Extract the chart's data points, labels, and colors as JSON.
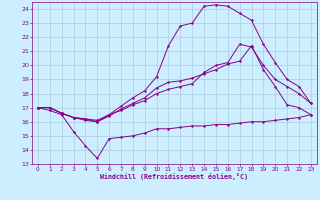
{
  "background_color": "#cceeff",
  "grid_color": "#aaccdd",
  "line_color": "#880088",
  "xlabel": "Windchill (Refroidissement éolien,°C)",
  "xlim": [
    -0.5,
    23.5
  ],
  "ylim": [
    13,
    24.5
  ],
  "yticks": [
    13,
    14,
    15,
    16,
    17,
    18,
    19,
    20,
    21,
    22,
    23,
    24
  ],
  "xticks": [
    0,
    1,
    2,
    3,
    4,
    5,
    6,
    7,
    8,
    9,
    10,
    11,
    12,
    13,
    14,
    15,
    16,
    17,
    18,
    19,
    20,
    21,
    22,
    23
  ],
  "line1_x": [
    0,
    1,
    2,
    3,
    4,
    5,
    6,
    7,
    8,
    9,
    10,
    11,
    12,
    13,
    14,
    15,
    16,
    17,
    18,
    19,
    20,
    21,
    22,
    23
  ],
  "line1_y": [
    17.0,
    16.8,
    16.5,
    15.3,
    14.3,
    13.4,
    14.8,
    14.9,
    15.0,
    15.2,
    15.5,
    15.5,
    15.6,
    15.7,
    15.7,
    15.8,
    15.8,
    15.9,
    16.0,
    16.0,
    16.1,
    16.2,
    16.3,
    16.5
  ],
  "line2_x": [
    0,
    1,
    2,
    3,
    4,
    5,
    6,
    7,
    8,
    9,
    10,
    11,
    12,
    13,
    14,
    15,
    16,
    17,
    18,
    19,
    20,
    21,
    22,
    23
  ],
  "line2_y": [
    17.0,
    17.0,
    16.6,
    16.3,
    16.2,
    16.1,
    16.5,
    16.8,
    17.2,
    17.5,
    18.0,
    18.3,
    18.5,
    18.7,
    19.5,
    20.0,
    20.2,
    21.5,
    21.3,
    20.0,
    19.0,
    18.5,
    18.0,
    17.3
  ],
  "line3_x": [
    0,
    1,
    2,
    3,
    4,
    5,
    6,
    7,
    8,
    9,
    10,
    11,
    12,
    13,
    14,
    15,
    16,
    17,
    18,
    19,
    20,
    21,
    22,
    23
  ],
  "line3_y": [
    17.0,
    17.0,
    16.6,
    16.3,
    16.1,
    16.0,
    16.5,
    17.1,
    17.7,
    18.2,
    19.2,
    21.4,
    22.8,
    23.0,
    24.2,
    24.3,
    24.2,
    23.7,
    23.2,
    21.5,
    20.2,
    19.0,
    18.5,
    17.3
  ],
  "line4_x": [
    0,
    1,
    2,
    3,
    4,
    5,
    6,
    7,
    8,
    9,
    10,
    11,
    12,
    13,
    14,
    15,
    16,
    17,
    18,
    19,
    20,
    21,
    22,
    23
  ],
  "line4_y": [
    17.0,
    17.0,
    16.6,
    16.3,
    16.2,
    16.0,
    16.4,
    16.9,
    17.3,
    17.7,
    18.4,
    18.8,
    18.9,
    19.1,
    19.4,
    19.7,
    20.1,
    20.3,
    21.4,
    19.7,
    18.5,
    17.2,
    17.0,
    16.5
  ]
}
